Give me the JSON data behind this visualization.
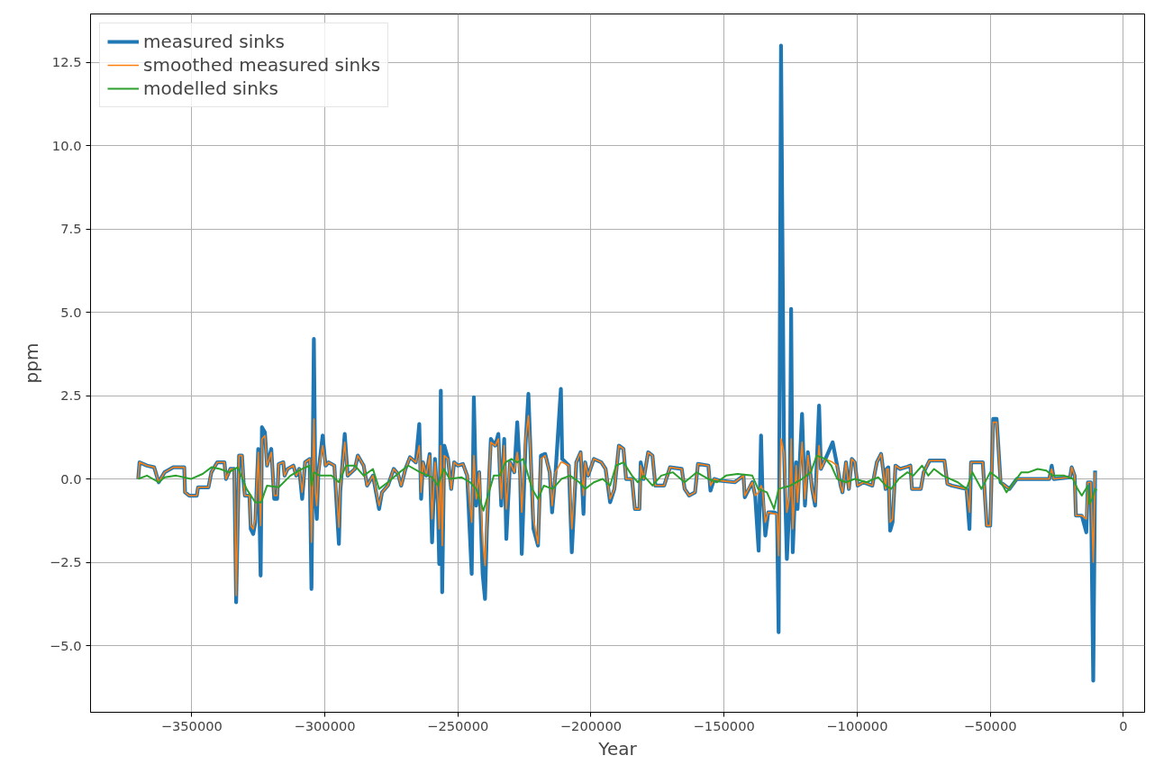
{
  "chart_data": {
    "type": "line",
    "xlabel": "Year",
    "ylabel": "ppm",
    "x": [
      -370100,
      -369600,
      -366800,
      -364100,
      -362400,
      -360200,
      -356900,
      -352800,
      -352500,
      -350900,
      -348100,
      -347600,
      -343700,
      -342600,
      -340400,
      -337700,
      -337100,
      -335500,
      -334000,
      -333300,
      -332200,
      -331100,
      -330500,
      -330000,
      -328300,
      -327800,
      -326900,
      -326100,
      -325000,
      -324100,
      -323600,
      -322500,
      -321700,
      -320100,
      -319000,
      -317900,
      -317300,
      -315600,
      -315100,
      -314000,
      -311800,
      -310700,
      -309600,
      -308500,
      -307400,
      -305700,
      -305000,
      -304100,
      -303500,
      -303000,
      -302400,
      -300800,
      -299700,
      -298600,
      -296400,
      -294700,
      -294200,
      -292500,
      -291400,
      -288700,
      -287600,
      -285400,
      -284100,
      -281900,
      -279600,
      -278500,
      -276300,
      -274100,
      -272500,
      -271300,
      -269700,
      -268000,
      -265800,
      -264500,
      -263800,
      -263100,
      -261900,
      -260600,
      -259700,
      -258600,
      -257500,
      -257000,
      -256400,
      -255900,
      -255100,
      -253700,
      -252500,
      -251400,
      -250000,
      -248100,
      -246500,
      -244800,
      -244000,
      -243100,
      -242000,
      -240700,
      -239800,
      -239100,
      -237600,
      -236000,
      -234800,
      -233700,
      -232600,
      -231800,
      -230400,
      -228800,
      -227700,
      -226600,
      -226000,
      -224600,
      -223500,
      -222700,
      -221600,
      -219900,
      -218800,
      -217200,
      -215500,
      -214600,
      -213300,
      -211300,
      -210800,
      -208300,
      -207200,
      -205500,
      -203900,
      -202800,
      -202200,
      -201100,
      -198900,
      -196100,
      -194500,
      -192800,
      -191200,
      -189500,
      -187800,
      -186800,
      -184600,
      -183500,
      -181800,
      -181300,
      -180200,
      -178500,
      -176900,
      -175800,
      -172500,
      -170300,
      -165900,
      -164800,
      -163100,
      -160900,
      -159800,
      -155900,
      -155100,
      -153700,
      -151500,
      -146000,
      -142700,
      -142200,
      -139400,
      -138300,
      -137000,
      -136100,
      -135600,
      -134500,
      -133400,
      -131200,
      -130100,
      -129500,
      -128600,
      -127500,
      -126400,
      -125300,
      -124800,
      -124200,
      -122900,
      -122400,
      -120700,
      -119600,
      -118500,
      -116900,
      -115800,
      -114300,
      -113600,
      -111900,
      -109200,
      -107500,
      -106200,
      -105500,
      -104200,
      -103100,
      -102000,
      -100900,
      -99800,
      -97600,
      -94300,
      -92600,
      -91000,
      -89300,
      -88900,
      -88300,
      -87600,
      -86700,
      -85600,
      -83900,
      -81700,
      -80000,
      -79400,
      -76100,
      -75000,
      -72800,
      -67200,
      -66100,
      -64400,
      -58900,
      -57800,
      -57200,
      -52800,
      -51300,
      -50000,
      -48900,
      -47600,
      -46100,
      -42800,
      -40000,
      -27800,
      -26900,
      -26100,
      -20000,
      -19400,
      -18300,
      -17800,
      -15600,
      -13900,
      -13300,
      -12200,
      -11300,
      -10600
    ],
    "series": [
      {
        "name": "measured sinks",
        "color": "#1f77b4",
        "values": [
          0,
          0.5,
          0.4,
          0.35,
          -0.1,
          0.2,
          0.35,
          0.35,
          -0.4,
          -0.5,
          -0.5,
          -0.25,
          -0.25,
          0.2,
          0.5,
          0.5,
          0,
          0.3,
          0.3,
          -3.7,
          0.7,
          0.7,
          -0.1,
          -0.5,
          -0.5,
          -1.5,
          -1.65,
          -1.3,
          0.9,
          -2.9,
          1.55,
          1.4,
          0.4,
          0.9,
          -0.6,
          -0.6,
          0.45,
          0.5,
          0.1,
          0.3,
          0.4,
          0.1,
          0.3,
          -0.6,
          0.5,
          0.6,
          -3.3,
          4.2,
          -0.6,
          -1.2,
          0.2,
          1.3,
          0.4,
          0.5,
          0.4,
          -1.95,
          -0.4,
          1.35,
          0.1,
          0.3,
          0.7,
          0.4,
          -0.2,
          0.1,
          -0.9,
          -0.4,
          -0.2,
          0.3,
          0.15,
          -0.2,
          0.3,
          0.65,
          0.5,
          1.65,
          -0.6,
          0.5,
          0.1,
          0.75,
          -1.9,
          0.6,
          -0.8,
          -2.55,
          2.65,
          -3.4,
          1.0,
          0.6,
          -0.3,
          0.5,
          0.4,
          0.45,
          0.1,
          -2.85,
          2.45,
          -0.8,
          0.2,
          -2.85,
          -3.6,
          -1.5,
          1.2,
          1.0,
          1.35,
          -0.8,
          1.2,
          -1.8,
          0.5,
          0.2,
          1.7,
          0.1,
          -2.25,
          1.0,
          2.55,
          0.8,
          -1.5,
          -2.0,
          0.7,
          0.75,
          0.2,
          -1.0,
          0.2,
          2.7,
          0.6,
          0.4,
          -2.2,
          0.5,
          0.8,
          -1.05,
          0.5,
          0.1,
          0.6,
          0.5,
          0.3,
          -0.7,
          -0.3,
          1.0,
          0.9,
          0.0,
          0.0,
          -0.9,
          -0.9,
          0.5,
          0.0,
          0.8,
          0.7,
          -0.2,
          -0.2,
          0.35,
          0.3,
          -0.3,
          -0.5,
          -0.4,
          0.45,
          0.4,
          -0.35,
          0.0,
          -0.05,
          -0.1,
          0.1,
          -0.55,
          -0.1,
          -0.5,
          -2.15,
          1.3,
          -0.3,
          -1.7,
          -1.0,
          -1.0,
          -1.05,
          -4.6,
          13.0,
          1.0,
          -2.4,
          -0.5,
          5.1,
          -2.2,
          0.5,
          -0.9,
          1.95,
          -0.8,
          0.8,
          -0.3,
          -0.8,
          2.2,
          0.3,
          0.6,
          1.1,
          0.4,
          -0.2,
          -0.4,
          0.5,
          -0.3,
          0.6,
          0.5,
          -0.2,
          -0.1,
          -0.2,
          0.5,
          0.75,
          -0.3,
          0.3,
          0.35,
          -1.55,
          -1.3,
          0.4,
          0.3,
          0.35,
          0.4,
          -0.3,
          -0.3,
          0.2,
          0.55,
          0.55,
          -0.15,
          -0.2,
          -0.3,
          -1.5,
          0.5,
          0.5,
          -1.4,
          -1.4,
          1.8,
          1.8,
          -0.1,
          -0.3,
          0.0,
          0.0,
          0.4,
          0.0,
          0.05,
          0.35,
          0.1,
          -1.1,
          -1.1,
          -1.6,
          -0.1,
          -0.1,
          -6.05,
          0.25
        ]
      },
      {
        "name": "smoothed measured sinks",
        "color": "#ff7f0e",
        "values": [
          0,
          0.5,
          0.4,
          0.35,
          -0.1,
          0.2,
          0.35,
          0.35,
          -0.4,
          -0.5,
          -0.5,
          -0.25,
          -0.25,
          0.2,
          0.5,
          0.5,
          0,
          0.3,
          0.3,
          -3.5,
          0.7,
          0.7,
          -0.1,
          -0.5,
          -0.5,
          -1.4,
          -1.5,
          -1.2,
          0.8,
          -1.4,
          1.2,
          1.3,
          0.4,
          0.8,
          -0.5,
          -0.5,
          0.45,
          0.5,
          0.1,
          0.3,
          0.4,
          0.1,
          0.3,
          -0.4,
          0.5,
          0.6,
          -1.9,
          1.8,
          -0.4,
          -0.8,
          0.2,
          1.0,
          0.4,
          0.5,
          0.4,
          -1.45,
          -0.3,
          1.1,
          0.1,
          0.3,
          0.7,
          0.4,
          -0.2,
          0.1,
          -0.8,
          -0.4,
          -0.2,
          0.3,
          0.15,
          -0.2,
          0.3,
          0.65,
          0.5,
          1.0,
          -0.4,
          0.5,
          0.1,
          0.7,
          -1.2,
          0.5,
          -0.6,
          -1.5,
          1.0,
          -2.0,
          0.7,
          0.6,
          -0.3,
          0.5,
          0.4,
          0.45,
          0.1,
          -1.3,
          0.7,
          -0.6,
          0.2,
          -1.8,
          -2.6,
          -1.3,
          1.1,
          1.0,
          1.2,
          -0.6,
          1.0,
          -0.9,
          0.5,
          0.2,
          0.8,
          0.1,
          -1.0,
          1.2,
          1.9,
          0.8,
          -1.2,
          -1.95,
          0.6,
          0.7,
          0.2,
          -0.8,
          0.2,
          0.5,
          0.5,
          0.4,
          -1.5,
          0.5,
          0.8,
          -0.5,
          0.5,
          0.1,
          0.6,
          0.5,
          0.3,
          -0.6,
          -0.3,
          1.0,
          0.9,
          0.0,
          0.0,
          -0.9,
          -0.9,
          0.4,
          0.0,
          0.8,
          0.7,
          -0.2,
          -0.2,
          0.35,
          0.3,
          -0.3,
          -0.5,
          -0.4,
          0.45,
          0.4,
          -0.2,
          0.0,
          -0.05,
          -0.1,
          0.1,
          -0.5,
          -0.1,
          -0.5,
          -0.4,
          -0.2,
          -0.3,
          -1.3,
          -1.0,
          -1.05,
          -1.05,
          -2.3,
          1.2,
          0.8,
          -1.0,
          -0.5,
          1.2,
          -1.5,
          0.4,
          -0.7,
          1.1,
          -0.6,
          0.7,
          -0.3,
          -0.7,
          1.0,
          0.3,
          0.6,
          0.5,
          0.4,
          -0.2,
          -0.4,
          0.5,
          -0.3,
          0.6,
          0.5,
          -0.2,
          -0.1,
          -0.2,
          0.5,
          0.75,
          -0.3,
          0.3,
          0.3,
          -1.3,
          -1.2,
          0.4,
          0.3,
          0.35,
          0.4,
          -0.3,
          -0.3,
          0.2,
          0.55,
          0.55,
          -0.15,
          -0.2,
          -0.3,
          -1.0,
          0.5,
          0.5,
          -1.4,
          -1.4,
          1.7,
          1.7,
          -0.1,
          -0.3,
          0.0,
          0.0,
          0.3,
          0.0,
          0.05,
          0.35,
          0.1,
          -1.1,
          -1.1,
          -1.2,
          -0.1,
          -0.1,
          -2.5,
          0.2
        ]
      },
      {
        "name": "modelled sinks",
        "color": "#2ca02c",
        "x": [
          -370100,
          -366800,
          -362400,
          -360200,
          -355800,
          -350300,
          -345900,
          -342600,
          -339300,
          -336000,
          -332700,
          -329400,
          -326100,
          -323900,
          -321700,
          -317300,
          -312900,
          -308500,
          -305700,
          -305000,
          -304100,
          -301900,
          -297500,
          -294700,
          -292000,
          -288700,
          -285400,
          -281900,
          -279600,
          -276300,
          -271900,
          -268600,
          -264200,
          -259700,
          -257500,
          -255300,
          -253100,
          -248700,
          -245400,
          -243100,
          -240400,
          -238700,
          -236500,
          -234300,
          -232100,
          -229900,
          -227700,
          -225400,
          -222100,
          -219900,
          -217700,
          -214400,
          -211100,
          -207800,
          -204400,
          -202200,
          -198900,
          -195600,
          -192800,
          -190600,
          -187800,
          -184600,
          -182400,
          -180200,
          -176900,
          -173600,
          -169200,
          -164800,
          -160300,
          -155900,
          -152600,
          -149300,
          -144900,
          -139400,
          -137200,
          -133900,
          -131200,
          -129500,
          -125100,
          -120700,
          -117400,
          -115200,
          -111900,
          -109700,
          -107500,
          -104200,
          -100900,
          -96500,
          -92100,
          -89300,
          -87200,
          -84400,
          -81100,
          -78900,
          -75600,
          -73300,
          -71100,
          -67800,
          -62200,
          -58900,
          -56700,
          -53300,
          -50000,
          -46700,
          -43900,
          -41100,
          -38300,
          -35600,
          -32200,
          -28900,
          -26700,
          -22200,
          -18900,
          -17200,
          -15600,
          -13300,
          -12800,
          -11700,
          -10600,
          -10000
        ],
        "values": [
          0,
          0.1,
          -0.1,
          0.05,
          0.1,
          0,
          0.15,
          0.35,
          0.3,
          0.2,
          0.35,
          -0.3,
          -0.7,
          -0.7,
          -0.2,
          -0.25,
          0.1,
          0.3,
          0.4,
          -0.2,
          0.2,
          0.1,
          0.1,
          -0.1,
          0.4,
          0.4,
          0.1,
          0.3,
          -0.3,
          -0.1,
          0.2,
          0.4,
          0.2,
          0.05,
          -0.2,
          0.3,
          0.0,
          0.05,
          -0.1,
          -0.3,
          -0.95,
          -0.5,
          0.1,
          0.1,
          0.5,
          0.6,
          0.5,
          0.6,
          -0.3,
          -0.6,
          -0.2,
          -0.3,
          0.0,
          0.1,
          -0.1,
          -0.3,
          -0.1,
          0.0,
          -0.2,
          0.4,
          0.5,
          0.1,
          -0.1,
          0.1,
          -0.2,
          0.1,
          0.2,
          -0.1,
          0.2,
          0.0,
          -0.1,
          0.1,
          0.15,
          0.1,
          -0.3,
          -0.4,
          -0.9,
          -0.3,
          -0.2,
          0.0,
          0.2,
          0.7,
          0.6,
          0.4,
          0.0,
          -0.1,
          0.0,
          -0.1,
          0.05,
          -0.2,
          -0.3,
          0.0,
          0.2,
          0.1,
          0.4,
          0.1,
          0.3,
          0.1,
          -0.1,
          -0.3,
          0.2,
          -0.3,
          0.2,
          0.0,
          -0.4,
          -0.1,
          0.2,
          0.2,
          0.3,
          0.25,
          0.1,
          0.1,
          0.0,
          -0.3,
          -0.5,
          -0.2,
          -0.75,
          -0.6,
          -0.3,
          -0.35
        ]
      }
    ],
    "xlim": [
      -388000,
      8000
    ],
    "ylim": [
      -7.0,
      13.95
    ],
    "xticks": [
      -350000,
      -300000,
      -250000,
      -200000,
      -150000,
      -100000,
      -50000,
      0
    ],
    "yticks": [
      {
        "value": -5,
        "label": "−5.0"
      },
      {
        "value": -2.5,
        "label": "−2.5"
      },
      {
        "value": 0,
        "label": "0.0"
      },
      {
        "value": 2.5,
        "label": "2.5"
      },
      {
        "value": 5,
        "label": "5.0"
      },
      {
        "value": 7.5,
        "label": "7.5"
      },
      {
        "value": 10,
        "label": "10.0"
      },
      {
        "value": 12.5,
        "label": "12.5"
      }
    ],
    "grid": true,
    "legend": "top left",
    "line_style": "solid"
  }
}
